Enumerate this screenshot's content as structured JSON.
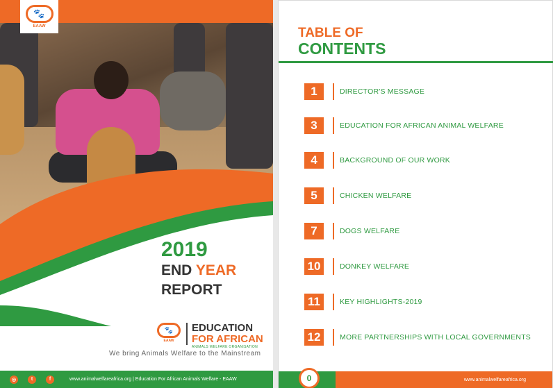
{
  "cover": {
    "logo_text": "EAAW",
    "title_year": "2019",
    "title_end": "END",
    "title_year_word": "YEAR",
    "title_report": "REPORT",
    "org_line1": "EDUCATION",
    "org_line2": "FOR AFRICAN",
    "org_line3": "ANIMALS WELFARE ORGANISATION",
    "org_logo_text": "EAAW",
    "tagline": "We bring Animals Welfare to the Mainstream",
    "footer_text": "www.animalwelfareafrica.org   |   Education For African Animals Welfare - EAAW",
    "social_icons": [
      "instagram-icon",
      "twitter-icon",
      "facebook-icon"
    ]
  },
  "toc": {
    "title_line1": "TABLE OF",
    "title_line2": "CONTENTS",
    "entries": [
      {
        "page": "1",
        "label": "DIRECTOR'S MESSAGE"
      },
      {
        "page": "3",
        "label": "EDUCATION FOR AFRICAN ANIMAL WELFARE"
      },
      {
        "page": "4",
        "label": "BACKGROUND OF OUR WORK"
      },
      {
        "page": "5",
        "label": "CHICKEN WELFARE"
      },
      {
        "page": "7",
        "label": "DOGS WELFARE"
      },
      {
        "page": "10",
        "label": "DONKEY WELFARE"
      },
      {
        "page": "11",
        "label": "KEY HIGHLIGHTS-2019"
      },
      {
        "page": "12",
        "label": "MORE PARTNERSHIPS WITH LOCAL GOVERNMENTS"
      }
    ],
    "page_number": "0",
    "footer_url": "www.animalwelfareafrica.org"
  },
  "colors": {
    "orange": "#ee6a26",
    "green": "#2f9a41",
    "dark_text": "#333333"
  }
}
